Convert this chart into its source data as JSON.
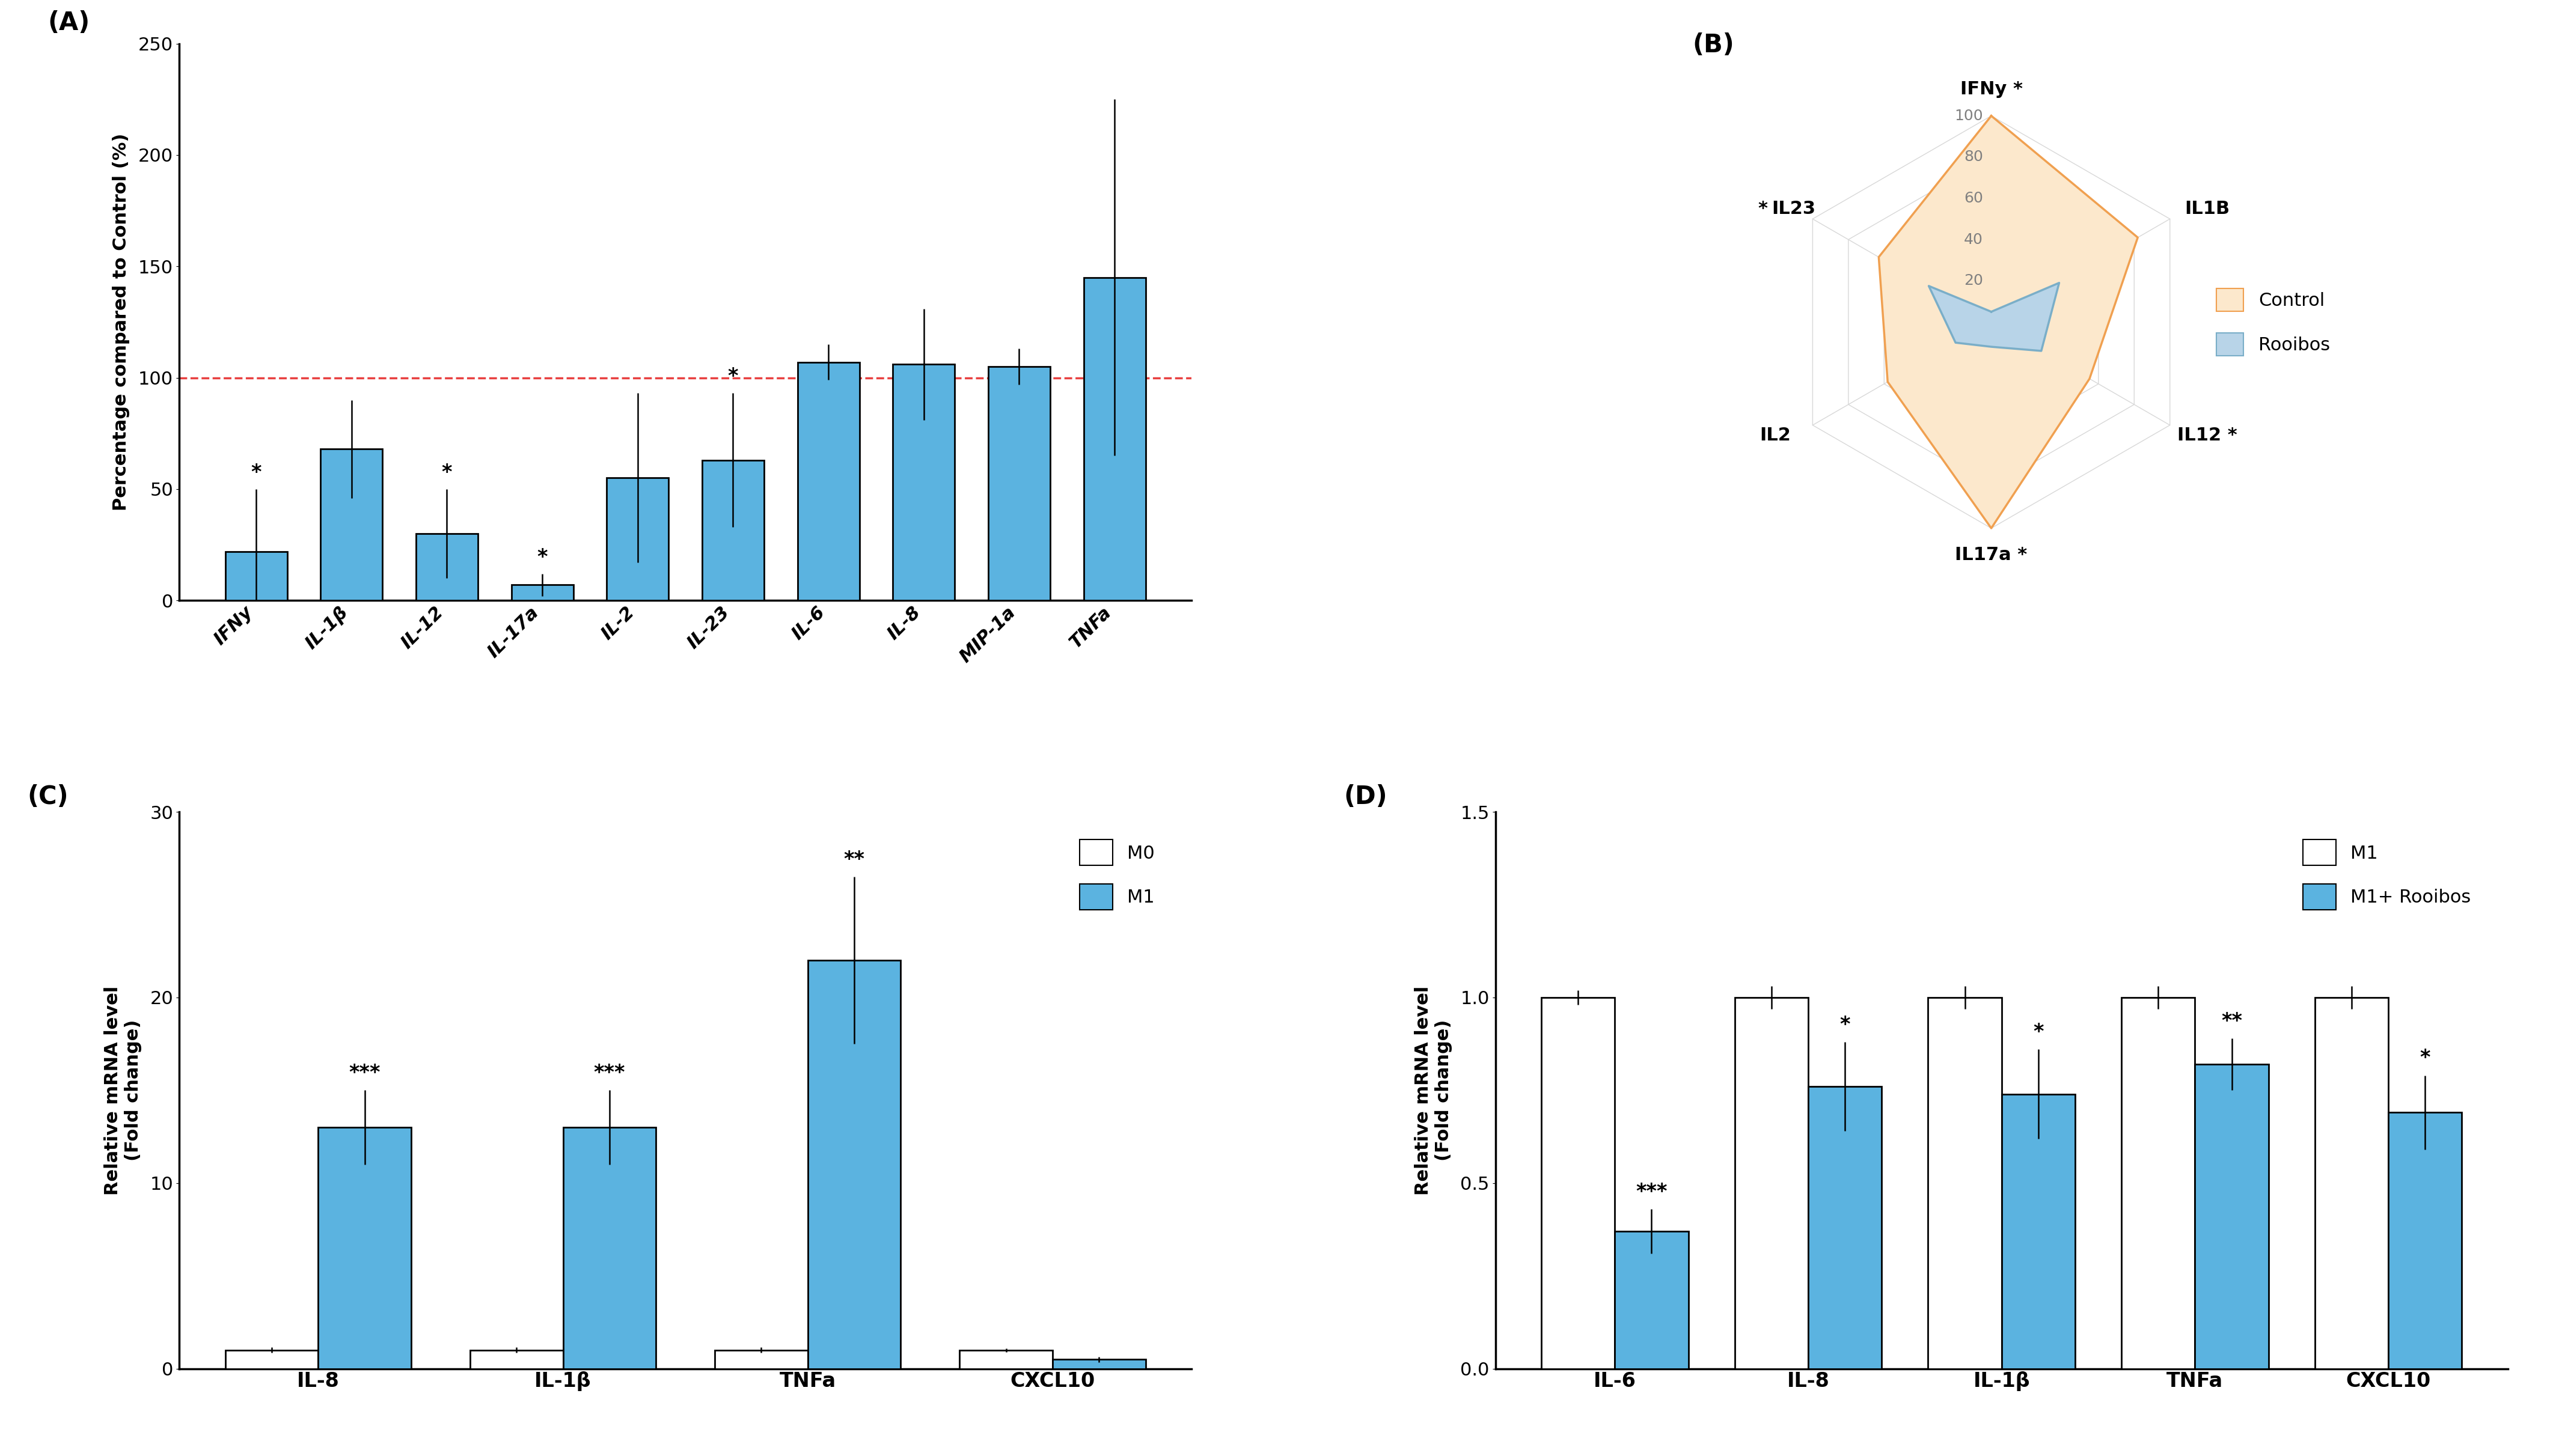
{
  "A": {
    "categories": [
      "IFNy",
      "IL-1β",
      "IL-12",
      "IL-17a",
      "IL-2",
      "IL-23",
      "IL-6",
      "IL-8",
      "MIP-1a",
      "TNFa"
    ],
    "values": [
      22,
      68,
      30,
      7,
      55,
      63,
      107,
      106,
      105,
      145
    ],
    "errors": [
      28,
      22,
      20,
      5,
      38,
      30,
      8,
      25,
      8,
      80
    ],
    "sig": [
      "*",
      "",
      "*",
      "*",
      "",
      "*",
      "",
      "",
      "",
      ""
    ],
    "bar_color": "#5bb3e0",
    "ylabel": "Percentage compared to Control (%)",
    "ylim": [
      0,
      250
    ],
    "yticks": [
      0,
      50,
      100,
      150,
      200,
      250
    ],
    "dashed_line": 100
  },
  "B": {
    "categories": [
      "IFNy",
      "IL1B",
      "IL12",
      "IL17a",
      "IL2",
      "IL23"
    ],
    "control_values": [
      100,
      82,
      55,
      100,
      58,
      63
    ],
    "rooibos_values": [
      5,
      38,
      28,
      12,
      20,
      35
    ],
    "control_color": "#f0a050",
    "control_fill": "#fce8cc",
    "rooibos_color": "#7aaec8",
    "rooibos_fill": "#b8d4e8",
    "sig_labels": {
      "IFNy": true,
      "IL12": true,
      "IL17a": true,
      "IL23": true
    },
    "rticks": [
      0,
      20,
      40,
      60,
      80,
      100
    ]
  },
  "C": {
    "categories": [
      "IL-8",
      "IL-1β",
      "TNFa",
      "CXCL10"
    ],
    "M0_values": [
      1.0,
      1.0,
      1.0,
      1.0
    ],
    "M1_values": [
      13.0,
      13.0,
      22.0,
      0.5
    ],
    "M0_errors": [
      0.15,
      0.15,
      0.15,
      0.1
    ],
    "M1_errors": [
      2.0,
      2.0,
      4.5,
      0.15
    ],
    "M0_color": "#ffffff",
    "M1_color": "#5bb3e0",
    "sig": [
      "***",
      "***",
      "**",
      ""
    ],
    "ylabel": "Relative mRNA level\n(Fold change)",
    "ylim": [
      0,
      30
    ],
    "yticks": [
      0,
      10,
      20,
      30
    ]
  },
  "D": {
    "categories": [
      "IL-6",
      "IL-8",
      "IL-1β",
      "TNFa",
      "CXCL10"
    ],
    "M1_values": [
      1.0,
      1.0,
      1.0,
      1.0,
      1.0
    ],
    "M1R_values": [
      0.37,
      0.76,
      0.74,
      0.82,
      0.69
    ],
    "M1_errors": [
      0.02,
      0.03,
      0.03,
      0.03,
      0.03
    ],
    "M1R_errors": [
      0.06,
      0.12,
      0.12,
      0.07,
      0.1
    ],
    "M1_color": "#ffffff",
    "M1R_color": "#5bb3e0",
    "sig": [
      "***",
      "*",
      "*",
      "**",
      "*"
    ],
    "ylabel": "Relative mRNA level\n(Fold change)",
    "ylim": [
      0,
      1.5
    ],
    "yticks": [
      0.0,
      0.5,
      1.0,
      1.5
    ]
  },
  "background_color": "#ffffff",
  "bar_edgecolor": "#000000"
}
